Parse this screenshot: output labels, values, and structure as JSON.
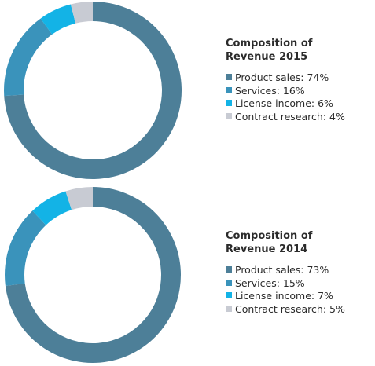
{
  "chart_data": [
    {
      "type": "pie",
      "title": "Composition of Revenue 2015",
      "categories": [
        "Product sales: 74%",
        "Services: 16%",
        "License income: 6%",
        "Contract research: 4%"
      ],
      "values": [
        74,
        16,
        6,
        4
      ],
      "colors": [
        "#4d7f98",
        "#3a93bb",
        "#13b3e6",
        "#c8cbd3"
      ]
    },
    {
      "type": "pie",
      "title": "Composition of Revenue 2014",
      "categories": [
        "Product sales: 73%",
        "Services: 15%",
        "License income: 7%",
        "Contract research: 5%"
      ],
      "values": [
        73,
        15,
        7,
        5
      ],
      "colors": [
        "#4d7f98",
        "#3a93bb",
        "#13b3e6",
        "#c8cbd3"
      ]
    }
  ]
}
